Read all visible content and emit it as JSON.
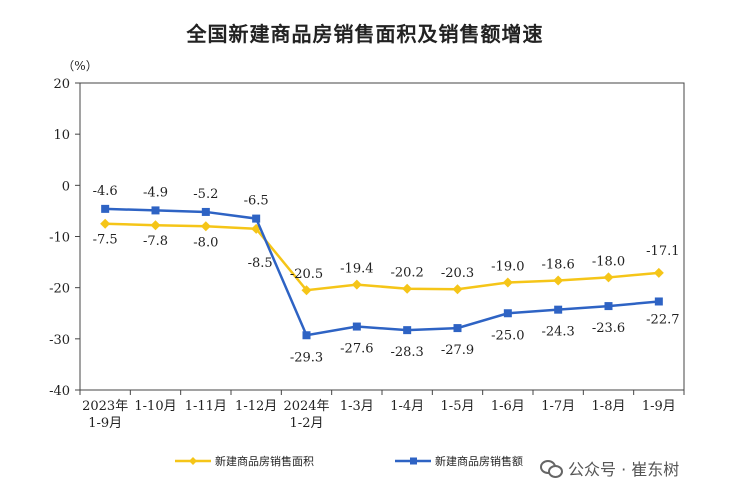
{
  "chart_data": {
    "type": "line",
    "title": "全国新建商品房销售面积及销售额增速",
    "ylabel": "（%）",
    "ylim": [
      -40,
      20
    ],
    "yticks": [
      20,
      10,
      0,
      -10,
      -20,
      -30,
      -40
    ],
    "categories": [
      "2023年\n1-9月",
      "1-10月",
      "1-11月",
      "1-12月",
      "2024年\n1-2月",
      "1-3月",
      "1-4月",
      "1-5月",
      "1-6月",
      "1-7月",
      "1-8月",
      "1-9月"
    ],
    "series": [
      {
        "name": "新建商品房销售面积",
        "color": "#F5C518",
        "marker": "diamond",
        "values": [
          -7.5,
          -7.8,
          -8.0,
          -8.5,
          -20.5,
          -19.4,
          -20.2,
          -20.3,
          -19.0,
          -18.6,
          -18.0,
          -17.1
        ],
        "labels": [
          "-7.5",
          "-7.8",
          "-8.0",
          "-8.5",
          "-20.5",
          "-19.4",
          "-20.2",
          "-20.3",
          "-19.0",
          "-18.6",
          "-18.0",
          "-17.1"
        ]
      },
      {
        "name": "新建商品房销售额",
        "color": "#2E63C4",
        "marker": "square",
        "values": [
          -4.6,
          -4.9,
          -5.2,
          -6.5,
          -29.3,
          -27.6,
          -28.3,
          -27.9,
          -25.0,
          -24.3,
          -23.6,
          -22.7
        ],
        "labels": [
          "-4.6",
          "-4.9",
          "-5.2",
          "-6.5",
          "-29.3",
          "-27.6",
          "-28.3",
          "-27.9",
          "-25.0",
          "-24.3",
          "-23.6",
          "-22.7"
        ]
      }
    ],
    "grid": false,
    "legend": "bottom"
  },
  "watermark": "公众号 · 崔东树"
}
